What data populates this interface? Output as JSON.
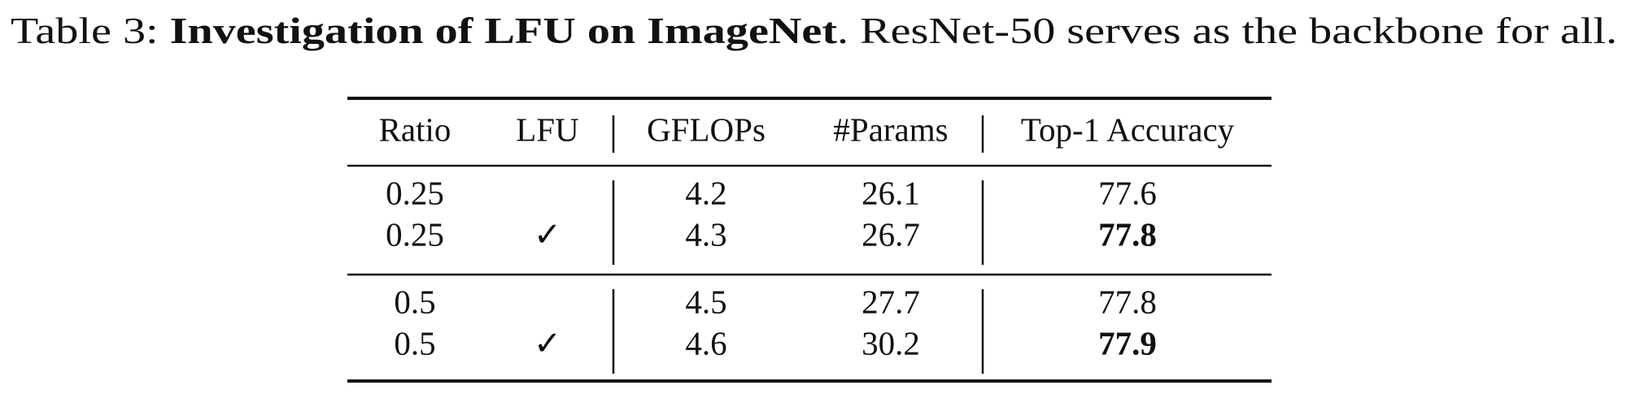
{
  "caption": {
    "label": "Table 3: ",
    "title": "Investigation of LFU on ImageNet",
    "text": ". ResNet-50 serves as the backbone for all."
  },
  "table": {
    "header": [
      "Ratio",
      "LFU",
      "GFLOPs",
      "#Params",
      "Top-1 Accuracy"
    ],
    "groups": [
      [
        [
          "0.25",
          null,
          "4.2",
          "26.1",
          "77.6"
        ],
        [
          "0.25",
          "✓",
          "4.3",
          "26.7",
          "77.8"
        ]
      ],
      [
        [
          "0.5",
          null,
          "4.5",
          "27.7",
          "77.8"
        ],
        [
          "0.5",
          "✓",
          "4.6",
          "30.2",
          "77.9"
        ]
      ]
    ],
    "bold_cells": [
      "0.1.4",
      "1.1.4"
    ]
  }
}
